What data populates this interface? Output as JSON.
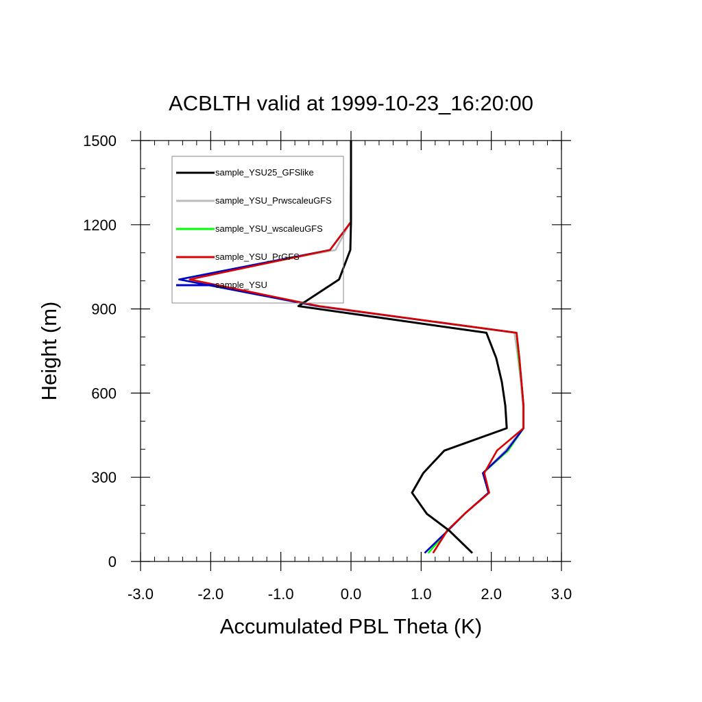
{
  "chart_data": {
    "type": "line",
    "title": "ACBLTH valid at 1999-10-23_16:20:00",
    "xlabel": "Accumulated PBL Theta (K)",
    "ylabel": "Height (m)",
    "xlim": [
      -3.0,
      3.0
    ],
    "ylim": [
      0,
      1500
    ],
    "xticks": [
      -3.0,
      -2.0,
      -1.0,
      0.0,
      1.0,
      2.0,
      3.0
    ],
    "xtick_labels": [
      "-3.0",
      "-2.0",
      "-1.0",
      "0.0",
      "1.0",
      "2.0",
      "3.0"
    ],
    "yticks": [
      0,
      300,
      600,
      900,
      1200,
      1500
    ],
    "ytick_labels": [
      "0",
      "300",
      "600",
      "900",
      "1200",
      "1500"
    ],
    "grid": false,
    "legend_position": "top-left",
    "heights": [
      30,
      110,
      170,
      245,
      315,
      395,
      475,
      555,
      640,
      725,
      815,
      910,
      1005,
      1110,
      1210,
      1300,
      1400,
      1500
    ],
    "series": [
      {
        "name": "sample_YSU25_GFSlike",
        "color": "#000000",
        "values": [
          1.73,
          1.4,
          1.08,
          0.87,
          1.03,
          1.33,
          2.22,
          2.2,
          2.15,
          2.07,
          1.93,
          -0.75,
          -0.17,
          -0.01,
          0.0,
          0.0,
          0.0,
          0.0
        ]
      },
      {
        "name": "sample_YSU_PrwscaleuGFS",
        "color": "#bbbbbb",
        "values": [
          1.17,
          1.38,
          1.62,
          1.97,
          1.88,
          2.2,
          2.45,
          2.45,
          2.42,
          2.38,
          2.33,
          -0.5,
          -2.45,
          -0.22,
          -0.01,
          -0.01,
          0.0,
          0.0
        ]
      },
      {
        "name": "sample_YSU_wscaleuGFS",
        "color": "#00ff00",
        "values": [
          1.1,
          1.38,
          1.62,
          1.96,
          1.88,
          2.24,
          2.46,
          2.46,
          2.43,
          2.39,
          2.36,
          -0.48,
          -2.45,
          -0.3,
          0.0,
          0.0,
          0.0,
          0.0
        ]
      },
      {
        "name": "sample_YSU_PrGFS",
        "color": "#dd0000",
        "values": [
          1.17,
          1.37,
          1.62,
          1.97,
          1.9,
          2.08,
          2.46,
          2.46,
          2.43,
          2.4,
          2.36,
          -0.45,
          -2.3,
          -0.3,
          0.0,
          0.0,
          0.0,
          0.0
        ]
      },
      {
        "name": "sample_YSU",
        "color": "#0000cc",
        "values": [
          1.05,
          1.38,
          1.62,
          1.96,
          1.88,
          2.22,
          2.46,
          2.46,
          2.43,
          2.4,
          2.36,
          -0.48,
          -2.45,
          -0.3,
          0.0,
          0.0,
          0.0,
          0.0
        ]
      }
    ]
  }
}
